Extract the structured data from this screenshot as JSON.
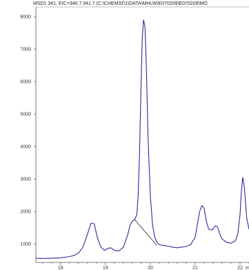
{
  "chart_data": {
    "type": "line",
    "header": "MSD1 341, EIC=340.7:341.7 (C:\\CHEM32\\1\\DATA\\MHLW\\E070209\\E070209\\MO",
    "xlabel": "",
    "ylabel": "",
    "xlim": [
      17.45,
      22.2
    ],
    "ylim": [
      430,
      8300
    ],
    "x_ticks": [
      {
        "value": 18,
        "label": "18"
      },
      {
        "value": 19,
        "label": "19"
      },
      {
        "value": 20,
        "label": "20"
      },
      {
        "value": 21,
        "label": "21"
      },
      {
        "value": 22,
        "label": "22"
      }
    ],
    "x_unit_label": "min",
    "y_ticks": [
      {
        "value": 1000,
        "label": "1000"
      },
      {
        "value": 2000,
        "label": "2000"
      },
      {
        "value": 3000,
        "label": "3000"
      },
      {
        "value": 4000,
        "label": "4000"
      },
      {
        "value": 5000,
        "label": "5000"
      },
      {
        "value": 6000,
        "label": "6000"
      },
      {
        "value": 7000,
        "label": "7000"
      },
      {
        "value": 8000,
        "label": "8000"
      }
    ],
    "series": [
      {
        "color": "#2a2a9e",
        "x": [
          17.45,
          17.6,
          17.8,
          18.0,
          18.1,
          18.2,
          18.3,
          18.4,
          18.5,
          18.6,
          18.68,
          18.75,
          18.82,
          18.9,
          18.98,
          19.05,
          19.12,
          19.2,
          19.3,
          19.4,
          19.5,
          19.55,
          19.6,
          19.65,
          19.7,
          19.73,
          19.76,
          19.79,
          19.82,
          19.85,
          19.88,
          19.9,
          19.92,
          19.95,
          20.0,
          20.05,
          20.1,
          20.15,
          20.2,
          20.25,
          20.3,
          20.4,
          20.5,
          20.6,
          20.7,
          20.8,
          20.9,
          21.0,
          21.05,
          21.1,
          21.15,
          21.2,
          21.25,
          21.3,
          21.38,
          21.45,
          21.5,
          21.55,
          21.6,
          21.7,
          21.8,
          21.9,
          21.95,
          22.0,
          22.03,
          22.06,
          22.1,
          22.15,
          22.2
        ],
        "y": [
          560,
          550,
          560,
          570,
          590,
          610,
          640,
          720,
          900,
          1300,
          1640,
          1620,
          1200,
          900,
          800,
          860,
          880,
          800,
          780,
          900,
          1300,
          1580,
          1700,
          1750,
          1900,
          2500,
          3800,
          5600,
          7300,
          7900,
          7700,
          7000,
          6000,
          4300,
          2500,
          1600,
          1200,
          1050,
          980,
          960,
          950,
          930,
          900,
          880,
          900,
          920,
          980,
          1200,
          1600,
          2000,
          2180,
          2100,
          1700,
          1450,
          1430,
          1560,
          1520,
          1300,
          1150,
          1050,
          1020,
          1100,
          1300,
          1900,
          2600,
          3050,
          2700,
          1800,
          1450
        ]
      }
    ],
    "annotations": [
      {
        "type": "baseline-segment",
        "x": [
          19.65,
          20.15
        ],
        "y": [
          1750,
          950
        ]
      }
    ],
    "grid": false,
    "legend": "none"
  }
}
